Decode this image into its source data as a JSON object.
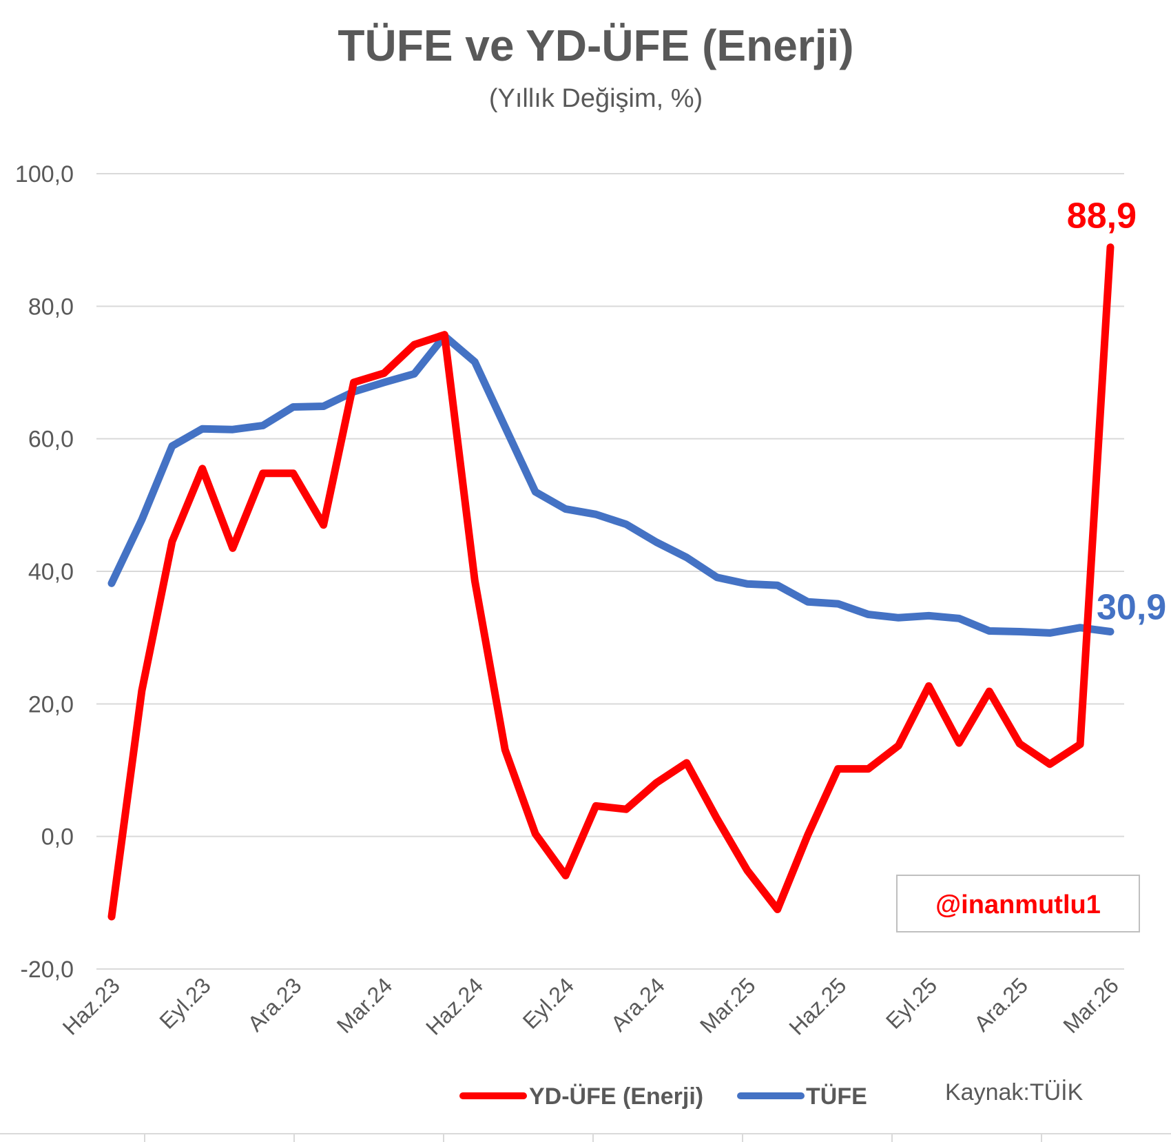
{
  "colors": {
    "yd_ufe": "#ff0000",
    "tufe": "#4472c4",
    "grid": "#d9d9d9",
    "text": "#595959"
  },
  "watermark": "@inanmutlu1",
  "source": "Kaynak:TÜİK",
  "chart_data": {
    "type": "line",
    "title": "TÜFE ve YD-ÜFE (Enerji)",
    "subtitle": "(Yıllık Değişim, %)",
    "xlabel": "",
    "ylabel": "",
    "ylim": [
      -20,
      100
    ],
    "y_ticks": [
      "100,0",
      "80,0",
      "60,0",
      "40,0",
      "20,0",
      "0,0",
      "-20,0"
    ],
    "y_tick_values": [
      100,
      80,
      60,
      40,
      20,
      0,
      -20
    ],
    "grid": true,
    "legend_position": "bottom",
    "x_tick_labels": [
      "Haz.23",
      "Eyl.23",
      "Ara.23",
      "Mar.24",
      "Haz.24",
      "Eyl.24",
      "Ara.24",
      "Mar.25",
      "Haz.25",
      "Eyl.25",
      "Ara.25",
      "Mar.26"
    ],
    "x_tick_indices": [
      0,
      3,
      6,
      9,
      12,
      15,
      18,
      21,
      24,
      27,
      30,
      33
    ],
    "categories": [
      "Haz.23",
      "Tem.23",
      "Ağu.23",
      "Eyl.23",
      "Eki.23",
      "Kas.23",
      "Ara.23",
      "Oca.24",
      "Şub.24",
      "Mar.24",
      "Nis.24",
      "May.24",
      "Haz.24",
      "Tem.24",
      "Ağu.24",
      "Eyl.24",
      "Eki.24",
      "Kas.24",
      "Ara.24",
      "Oca.25",
      "Şub.25",
      "Mar.25",
      "Nis.25",
      "May.25",
      "Haz.25",
      "Tem.25",
      "Ağu.25",
      "Eyl.25",
      "Eki.25",
      "Kas.25",
      "Ara.25",
      "Oca.26",
      "Şub.26",
      "Mar.26"
    ],
    "series": [
      {
        "name": "YD-ÜFE (Enerji)",
        "key": "yd_ufe",
        "values": [
          -12.1,
          22,
          44.5,
          55.5,
          43.5,
          54.8,
          54.8,
          47,
          68.5,
          69.9,
          74.2,
          75.7,
          38.6,
          13.1,
          0.4,
          -5.9,
          4.6,
          4.1,
          8.1,
          11.1,
          2.7,
          -5.1,
          -11.0,
          0.2,
          10.2,
          10.2,
          13.7,
          22.7,
          14.1,
          21.9,
          14.0,
          10.9,
          13.9,
          88.9
        ]
      },
      {
        "name": "TÜFE",
        "key": "tufe",
        "values": [
          38.2,
          47.8,
          58.9,
          61.5,
          61.4,
          62.0,
          64.8,
          64.9,
          67.1,
          68.5,
          69.8,
          75.5,
          71.6,
          61.8,
          52.0,
          49.4,
          48.6,
          47.1,
          44.4,
          42.1,
          39.1,
          38.1,
          37.9,
          35.4,
          35.1,
          33.5,
          33.0,
          33.3,
          32.9,
          31.0,
          30.9,
          30.7,
          31.5,
          30.9
        ]
      }
    ],
    "end_labels": [
      {
        "series": "yd_ufe",
        "text": "88,9"
      },
      {
        "series": "tufe",
        "text": "30,9"
      }
    ]
  }
}
